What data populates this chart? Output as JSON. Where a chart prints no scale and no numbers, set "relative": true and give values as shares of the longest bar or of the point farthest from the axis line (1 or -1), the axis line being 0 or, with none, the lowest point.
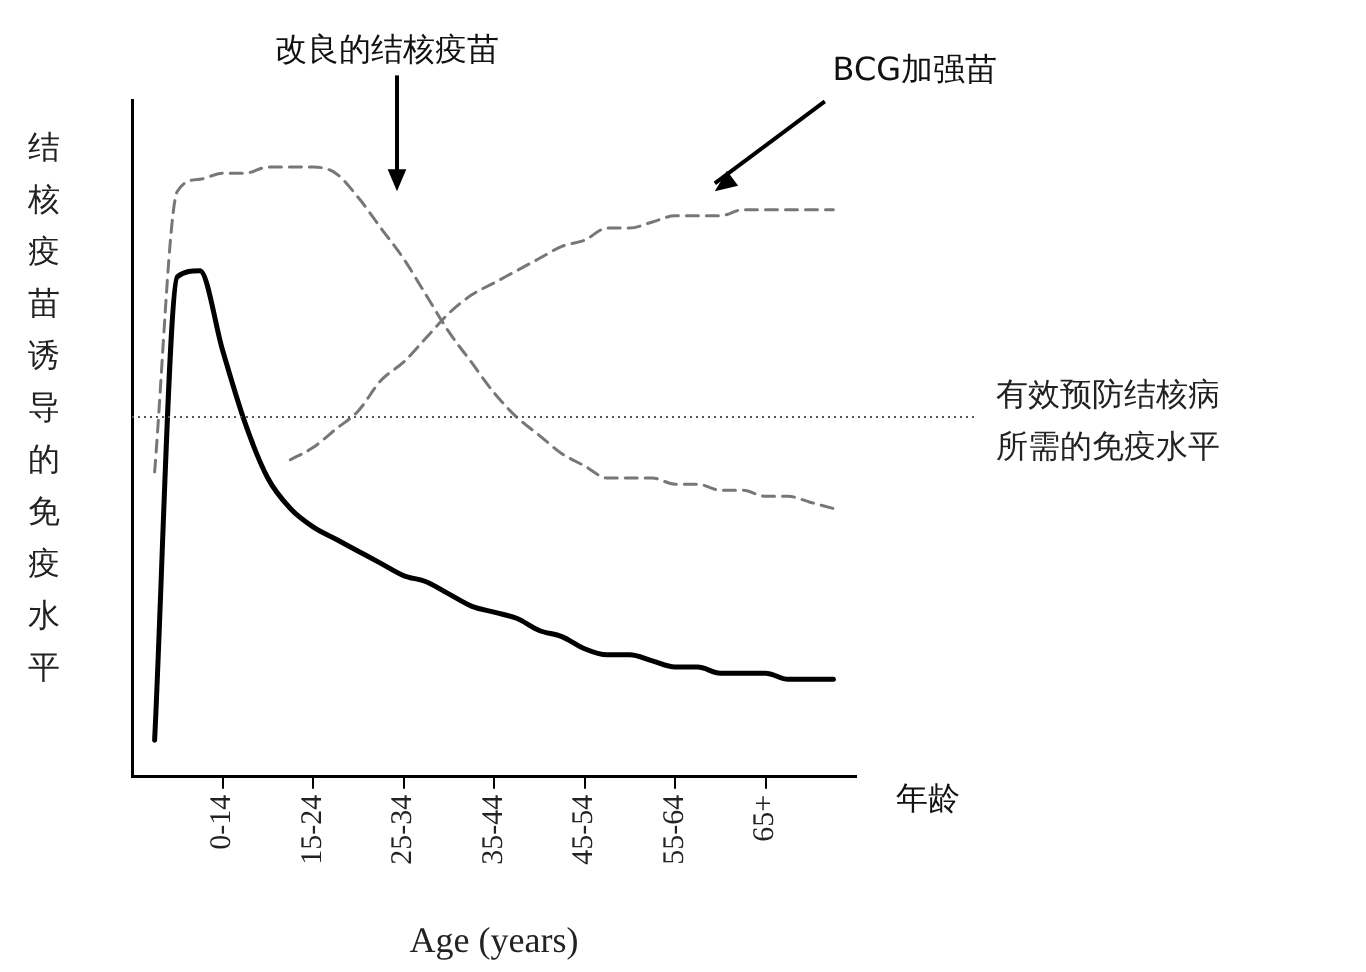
{
  "chart_data": {
    "type": "line",
    "relative": true,
    "xlabel": "Age (years)",
    "ylabel": "结核疫苗诱导的免疫水平",
    "categories": [
      null,
      null,
      null,
      null,
      "0-14",
      null,
      null,
      null,
      "15-24",
      null,
      null,
      null,
      "25-34",
      null,
      null,
      null,
      "35-44",
      null,
      null,
      null,
      "45-54",
      null,
      null,
      null,
      "55-64",
      null,
      null,
      null,
      "65+",
      null,
      null,
      null,
      null
    ],
    "series": [
      {
        "color": "#000000",
        "line_style": "solid",
        "values": [
          null,
          0.06,
          0.82,
          0.83,
          0.7,
          0.58,
          0.49,
          0.44,
          0.41,
          0.39,
          0.37,
          0.35,
          0.33,
          0.32,
          0.3,
          0.28,
          0.27,
          0.26,
          0.24,
          0.23,
          0.21,
          0.2,
          0.2,
          0.19,
          0.18,
          0.18,
          0.17,
          0.17,
          0.17,
          0.16,
          0.16,
          0.16,
          null
        ]
      },
      {
        "color": "#777777",
        "line_style": "dashed",
        "values": [
          null,
          0.5,
          0.96,
          0.98,
          0.99,
          0.99,
          1,
          1,
          1,
          0.99,
          0.95,
          0.9,
          0.85,
          0.79,
          0.73,
          0.68,
          0.63,
          0.59,
          0.56,
          0.53,
          0.51,
          0.49,
          0.49,
          0.49,
          0.48,
          0.48,
          0.47,
          0.47,
          0.46,
          0.46,
          0.45,
          0.44,
          null
        ]
      },
      {
        "color": "#777777",
        "line_style": "dashed",
        "values": [
          null,
          null,
          null,
          null,
          null,
          null,
          null,
          0.52,
          0.54,
          0.57,
          0.6,
          0.65,
          0.68,
          0.72,
          0.76,
          0.79,
          0.81,
          0.83,
          0.85,
          0.87,
          0.88,
          0.9,
          0.9,
          0.91,
          0.92,
          0.92,
          0.92,
          0.93,
          0.93,
          0.93,
          0.93,
          0.93,
          null
        ]
      }
    ],
    "ref_lines": [
      {
        "axis": "y",
        "value": 0.59,
        "label": "有效预防结核病所需的免疫水平",
        "color": "#555555",
        "line_style": "dotted"
      }
    ],
    "annotations": [
      "改良的结核疫苗",
      "BCG加强苗",
      "年龄"
    ],
    "marker": "none",
    "grid": false,
    "legend": false
  }
}
